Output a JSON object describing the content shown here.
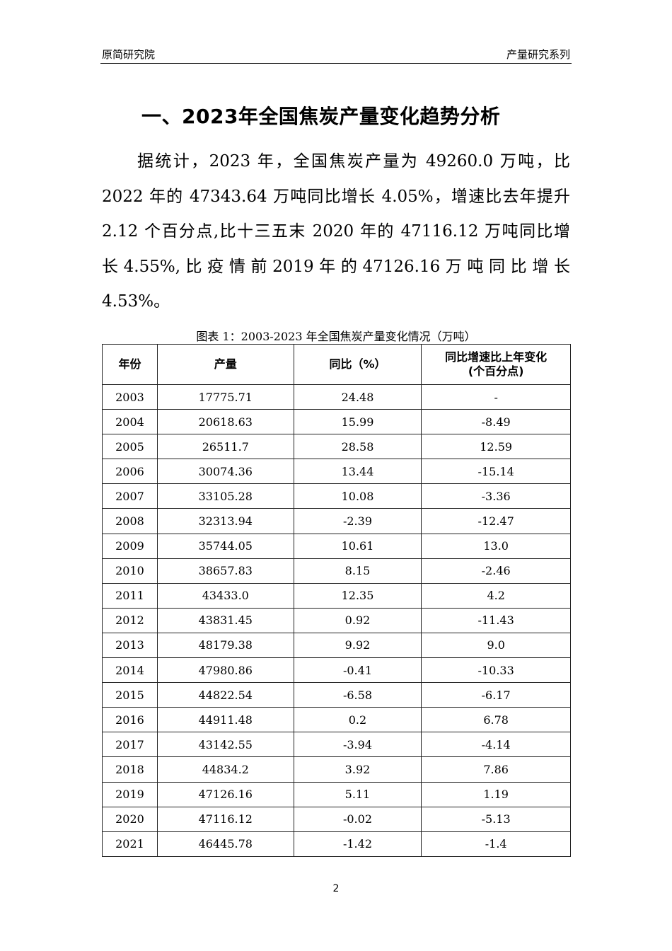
{
  "header": {
    "left": "原简研究院",
    "right": "产量研究系列"
  },
  "title": "一、2023年全国焦炭产量变化趋势分析",
  "paragraph_lines": [
    "据统计，2023 年，全国焦炭产量为 49260.0 万吨，比",
    "2022 年的 47343.64 万吨同比增长 4.05%，增速比去年提升",
    "2.12 个百分点,比十三五末 2020 年的 47116.12 万吨同比增",
    "长 4.55%, 比 疫 情 前 2019 年 的 47126.16 万 吨 同 比 增 长",
    "4.53%。"
  ],
  "table": {
    "caption": "图表 1：2003-2023 年全国焦炭产量变化情况（万吨）",
    "headers": [
      "年份",
      "产量",
      "同比（%）",
      "同比增速比上年变化",
      "(个百分点)"
    ],
    "rows": [
      [
        "2003",
        "17775.71",
        "24.48",
        "-"
      ],
      [
        "2004",
        "20618.63",
        "15.99",
        "-8.49"
      ],
      [
        "2005",
        "26511.7",
        "28.58",
        "12.59"
      ],
      [
        "2006",
        "30074.36",
        "13.44",
        "-15.14"
      ],
      [
        "2007",
        "33105.28",
        "10.08",
        "-3.36"
      ],
      [
        "2008",
        "32313.94",
        "-2.39",
        "-12.47"
      ],
      [
        "2009",
        "35744.05",
        "10.61",
        "13.0"
      ],
      [
        "2010",
        "38657.83",
        "8.15",
        "-2.46"
      ],
      [
        "2011",
        "43433.0",
        "12.35",
        "4.2"
      ],
      [
        "2012",
        "43831.45",
        "0.92",
        "-11.43"
      ],
      [
        "2013",
        "48179.38",
        "9.92",
        "9.0"
      ],
      [
        "2014",
        "47980.86",
        "-0.41",
        "-10.33"
      ],
      [
        "2015",
        "44822.54",
        "-6.58",
        "-6.17"
      ],
      [
        "2016",
        "44911.48",
        "0.2",
        "6.78"
      ],
      [
        "2017",
        "43142.55",
        "-3.94",
        "-4.14"
      ],
      [
        "2018",
        "44834.2",
        "3.92",
        "7.86"
      ],
      [
        "2019",
        "47126.16",
        "5.11",
        "1.19"
      ],
      [
        "2020",
        "47116.12",
        "-0.02",
        "-5.13"
      ],
      [
        "2021",
        "46445.78",
        "-1.42",
        "-1.4"
      ]
    ]
  },
  "page_number": "2"
}
